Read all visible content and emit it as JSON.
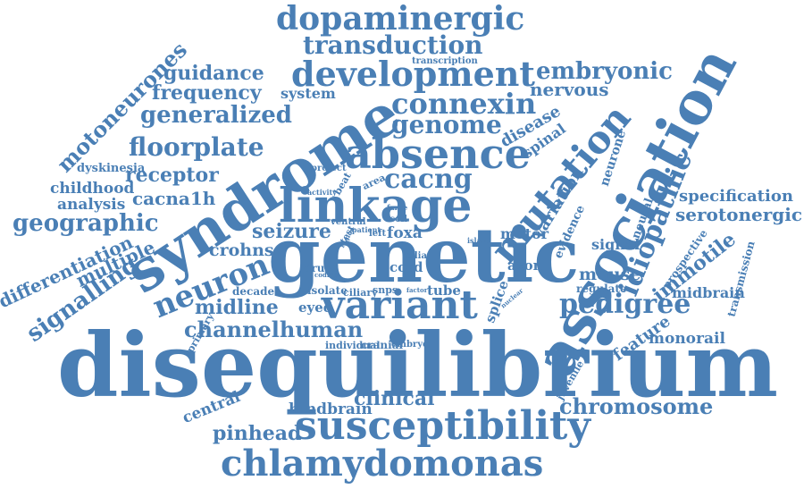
{
  "color": "#4a7fb5",
  "words": [
    "disequilibrium",
    "genetic",
    "syndrome",
    "association",
    "linkage",
    "mutation",
    "absence",
    "variant",
    "susceptibility",
    "chlamydomonas",
    "development",
    "dopaminergic",
    "transduction",
    "connexin",
    "neuron",
    "idiopathic",
    "pedigree",
    "motoneurones",
    "floorplate",
    "genome",
    "cacng",
    "embryonic",
    "chromosome",
    "generalized",
    "geographic",
    "channelhuman",
    "signalling",
    "guidance",
    "frequency",
    "nervous",
    "serotonergic",
    "specification",
    "immotile",
    "differentiation",
    "multiple",
    "midline",
    "cacna1h",
    "receptor",
    "seizure",
    "childhood",
    "analysis",
    "crohns",
    "variation",
    "clinical",
    "hindbrain",
    "pinhead",
    "central",
    "feature",
    "monorail",
    "mouse",
    "system",
    "disease",
    "spinal",
    "neurone",
    "evidence",
    "neural",
    "motor",
    "axon",
    "splice",
    "signal",
    "regulate",
    "midbrain",
    "transmission",
    "prospective",
    "dyskinesia",
    "tube",
    "cord",
    "foxa",
    "eyed",
    "isolate",
    "snps",
    "ciliary",
    "druze",
    "decade",
    "primary",
    "individual",
    "cranial",
    "embryo",
    "juvenile",
    "project",
    "activity",
    "area",
    "beat",
    "left",
    "cell",
    "ventral",
    "test",
    "patient",
    "faroe",
    "island",
    "cilia",
    "coding",
    "region",
    "factor",
    "nuclear",
    "transcription"
  ]
}
